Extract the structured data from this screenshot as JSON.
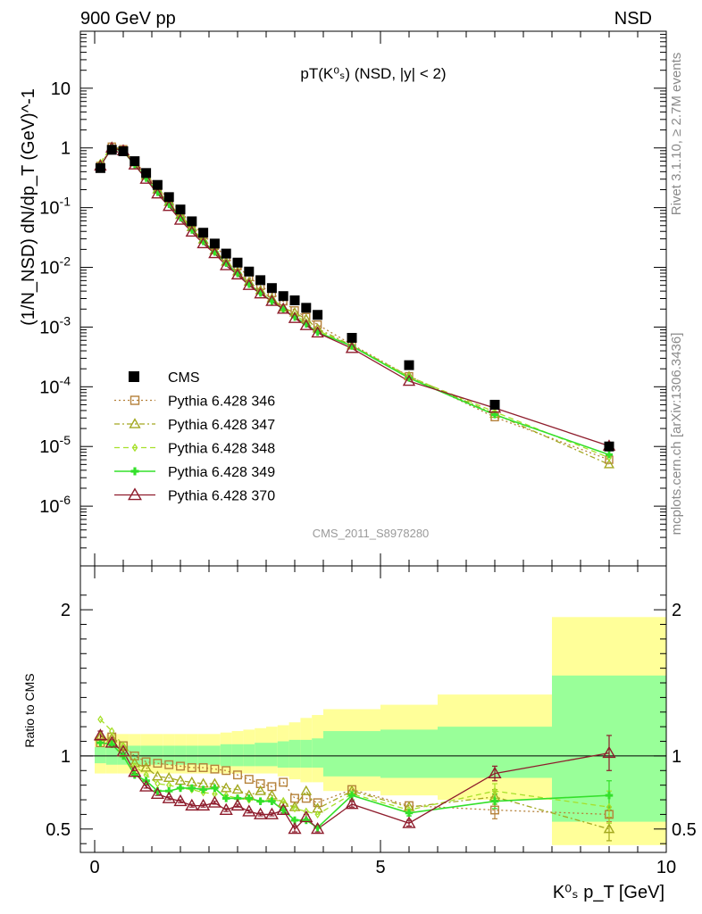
{
  "header": {
    "left": "900 GeV pp",
    "right": "NSD"
  },
  "side_labels": {
    "rivet": "Rivet 3.1.10, ≥ 2.7M events",
    "mcplots": "mcplots.cern.ch [arXiv:1306.3436]"
  },
  "watermark": "CMS_2011_S8978280",
  "colors": {
    "cms": "#000000",
    "p346": "#b5813a",
    "p347": "#a3a820",
    "p348": "#a6e02a",
    "p349": "#33e02a",
    "p370": "#8e1c2c",
    "band_outer": "#ffff99",
    "band_inner": "#99ff99"
  },
  "chart_data": [
    {
      "type": "scatter",
      "panel": "main",
      "title": "pT(K⁰ₛ) (NSD, |y| < 2)",
      "ylabel": "(1/N_NSD) dN/dp_T (GeV)^-1",
      "yscale": "log",
      "ylim": [
        1e-07,
        90
      ],
      "xlim": [
        -0.25,
        10
      ],
      "ytick_labels": [
        "10^-6",
        "10^-5",
        "10^-4",
        "10^-3",
        "10^-2",
        "10^-1",
        "1",
        "10"
      ],
      "legend": {
        "position": "middle-left",
        "entries": [
          "CMS",
          "Pythia 6.428 346",
          "Pythia 6.428 347",
          "Pythia 6.428 348",
          "Pythia 6.428 349",
          "Pythia 6.428 370"
        ]
      },
      "x": [
        0.1,
        0.3,
        0.5,
        0.7,
        0.9,
        1.1,
        1.3,
        1.5,
        1.7,
        1.9,
        2.1,
        2.3,
        2.5,
        2.7,
        2.9,
        3.1,
        3.3,
        3.5,
        3.7,
        3.9,
        4.5,
        5.5,
        7.0,
        9.0
      ],
      "series": [
        {
          "name": "CMS",
          "values": [
            0.46,
            0.93,
            0.88,
            0.6,
            0.38,
            0.24,
            0.15,
            0.093,
            0.059,
            0.038,
            0.025,
            0.017,
            0.012,
            0.0085,
            0.0061,
            0.0045,
            0.0033,
            0.0028,
            0.0021,
            0.0016,
            0.00066,
            0.00023,
            5e-05,
            1e-05
          ]
        },
        {
          "name": "Pythia 6.428 346",
          "values": [
            0.5,
            1.05,
            0.95,
            0.6,
            0.36,
            0.22,
            0.138,
            0.085,
            0.054,
            0.035,
            0.023,
            0.0148,
            0.0105,
            0.0069,
            0.0049,
            0.0037,
            0.0027,
            0.0019,
            0.00147,
            0.0011,
            0.00051,
            0.00015,
            3.1e-05,
            6e-06
          ]
        },
        {
          "name": "Pythia 6.428 347",
          "values": [
            0.52,
            1.04,
            0.93,
            0.57,
            0.34,
            0.2,
            0.124,
            0.075,
            0.047,
            0.029,
            0.019,
            0.0124,
            0.0085,
            0.0057,
            0.0041,
            0.003,
            0.0021,
            0.00174,
            0.00136,
            0.00094,
            0.00049,
            0.00015,
            3.5e-05,
            5e-06
          ]
        },
        {
          "name": "Pythia 6.428 348",
          "values": [
            0.57,
            1.08,
            0.92,
            0.55,
            0.33,
            0.19,
            0.12,
            0.072,
            0.045,
            0.028,
            0.018,
            0.0118,
            0.008,
            0.0054,
            0.0038,
            0.0028,
            0.0021,
            0.0016,
            0.0012,
            0.00088,
            0.00048,
            0.000147,
            3.8e-05,
            6.5e-06
          ]
        },
        {
          "name": "Pythia 6.428 349",
          "values": [
            0.5,
            1.0,
            0.88,
            0.52,
            0.31,
            0.18,
            0.113,
            0.067,
            0.042,
            0.027,
            0.018,
            0.0117,
            0.0079,
            0.0052,
            0.0037,
            0.0027,
            0.002,
            0.00146,
            0.00112,
            0.00082,
            0.00048,
            0.00014,
            3.4e-05,
            7.3e-06
          ]
        },
        {
          "name": "Pythia 6.428 370",
          "values": [
            0.5,
            1.0,
            0.9,
            0.52,
            0.3,
            0.17,
            0.105,
            0.062,
            0.039,
            0.025,
            0.017,
            0.0107,
            0.0075,
            0.005,
            0.0036,
            0.0027,
            0.002,
            0.0014,
            0.00106,
            0.0008,
            0.00044,
            0.000124,
            4.4e-05,
            1.02e-05
          ]
        }
      ]
    },
    {
      "type": "line",
      "panel": "ratio",
      "ylabel": "Ratio to CMS",
      "xlabel": "K⁰ₛ p_T [GeV]",
      "xlim": [
        -0.25,
        10
      ],
      "ylim": [
        0.34,
        2.3
      ],
      "ytick_labels": [
        "0.5",
        "1",
        "2"
      ],
      "xtick_labels": [
        "0",
        "5",
        "10"
      ],
      "x": [
        0.1,
        0.3,
        0.5,
        0.7,
        0.9,
        1.1,
        1.3,
        1.5,
        1.7,
        1.9,
        2.1,
        2.3,
        2.5,
        2.7,
        2.9,
        3.1,
        3.3,
        3.5,
        3.7,
        3.9,
        4.5,
        5.5,
        7.0,
        9.0
      ],
      "bands": {
        "bin_edges": [
          0.0,
          0.2,
          0.4,
          0.6,
          0.8,
          1.0,
          1.2,
          1.4,
          1.6,
          1.8,
          2.0,
          2.2,
          2.4,
          2.6,
          2.8,
          3.0,
          3.2,
          3.4,
          3.6,
          3.8,
          4.0,
          5.0,
          6.0,
          8.0,
          10.0
        ],
        "inner_low": [
          0.95,
          0.94,
          0.94,
          0.94,
          0.94,
          0.94,
          0.94,
          0.94,
          0.94,
          0.94,
          0.94,
          0.93,
          0.93,
          0.93,
          0.93,
          0.93,
          0.92,
          0.92,
          0.92,
          0.92,
          0.86,
          0.85,
          0.85,
          0.55
        ],
        "inner_high": [
          1.06,
          1.07,
          1.07,
          1.07,
          1.07,
          1.07,
          1.07,
          1.07,
          1.07,
          1.07,
          1.07,
          1.08,
          1.08,
          1.08,
          1.09,
          1.09,
          1.1,
          1.11,
          1.11,
          1.12,
          1.17,
          1.18,
          1.2,
          1.55
        ],
        "outer_low": [
          0.88,
          0.88,
          0.88,
          0.88,
          0.88,
          0.88,
          0.88,
          0.88,
          0.88,
          0.88,
          0.88,
          0.88,
          0.88,
          0.88,
          0.88,
          0.88,
          0.86,
          0.84,
          0.82,
          0.82,
          0.76,
          0.73,
          0.7,
          0.39
        ],
        "outer_high": [
          1.13,
          1.15,
          1.15,
          1.15,
          1.15,
          1.15,
          1.15,
          1.15,
          1.15,
          1.15,
          1.15,
          1.16,
          1.17,
          1.18,
          1.19,
          1.2,
          1.21,
          1.23,
          1.26,
          1.28,
          1.32,
          1.35,
          1.42,
          1.95
        ]
      },
      "reference_line": 1.0,
      "series": [
        {
          "name": "Pythia 6.428 346",
          "values": [
            1.09,
            1.13,
            1.07,
            1.0,
            0.96,
            0.95,
            0.94,
            0.93,
            0.92,
            0.92,
            0.91,
            0.9,
            0.87,
            0.84,
            0.81,
            0.79,
            0.82,
            0.71,
            0.71,
            0.68,
            0.77,
            0.66,
            0.63,
            0.6
          ],
          "errors": [
            0,
            0,
            0,
            0,
            0,
            0,
            0,
            0,
            0,
            0,
            0,
            0,
            0,
            0,
            0,
            0,
            0,
            0,
            0,
            0,
            0,
            0,
            0.06,
            0.05
          ]
        },
        {
          "name": "Pythia 6.428 347",
          "values": [
            1.13,
            1.12,
            1.06,
            0.95,
            0.92,
            0.86,
            0.85,
            0.83,
            0.82,
            0.81,
            0.81,
            0.78,
            0.77,
            0.73,
            0.76,
            0.73,
            0.68,
            0.65,
            0.76,
            0.64,
            0.76,
            0.65,
            0.72,
            0.5
          ],
          "errors": [
            0,
            0,
            0,
            0,
            0,
            0,
            0,
            0,
            0,
            0,
            0,
            0,
            0,
            0,
            0,
            0,
            0,
            0,
            0,
            0,
            0,
            0,
            0.05,
            0.08
          ]
        },
        {
          "name": "Pythia 6.428 348",
          "values": [
            1.25,
            1.17,
            1.07,
            0.93,
            0.87,
            0.81,
            0.8,
            0.78,
            0.77,
            0.75,
            0.74,
            0.73,
            0.71,
            0.7,
            0.69,
            0.7,
            0.69,
            0.64,
            0.62,
            0.6,
            0.74,
            0.63,
            0.76,
            0.65
          ],
          "errors": [
            0,
            0,
            0,
            0,
            0,
            0,
            0,
            0,
            0,
            0,
            0,
            0,
            0,
            0,
            0,
            0,
            0,
            0,
            0,
            0,
            0,
            0,
            0.05,
            0.11
          ]
        },
        {
          "name": "Pythia 6.428 349",
          "values": [
            1.09,
            1.08,
            1.0,
            0.87,
            0.83,
            0.76,
            0.76,
            0.78,
            0.78,
            0.77,
            0.78,
            0.71,
            0.71,
            0.71,
            0.69,
            0.69,
            0.63,
            0.56,
            0.56,
            0.51,
            0.73,
            0.61,
            0.69,
            0.73
          ],
          "errors": [
            0,
            0,
            0,
            0,
            0,
            0,
            0,
            0,
            0,
            0,
            0,
            0,
            0,
            0,
            0,
            0,
            0,
            0,
            0,
            0,
            0.03,
            0.02,
            0.05,
            0.1
          ]
        },
        {
          "name": "Pythia 6.428 370",
          "values": [
            1.14,
            1.09,
            1.03,
            0.89,
            0.79,
            0.74,
            0.71,
            0.69,
            0.66,
            0.66,
            0.68,
            0.63,
            0.66,
            0.62,
            0.6,
            0.6,
            0.63,
            0.5,
            0.58,
            0.5,
            0.67,
            0.54,
            0.88,
            1.02
          ],
          "errors": [
            0.03,
            0.02,
            0.01,
            0.01,
            0.01,
            0.01,
            0.01,
            0.01,
            0.01,
            0.01,
            0.01,
            0.01,
            0.01,
            0.01,
            0.01,
            0.01,
            0.02,
            0.02,
            0.02,
            0.02,
            0.02,
            0.02,
            0.05,
            0.12
          ]
        }
      ]
    }
  ]
}
